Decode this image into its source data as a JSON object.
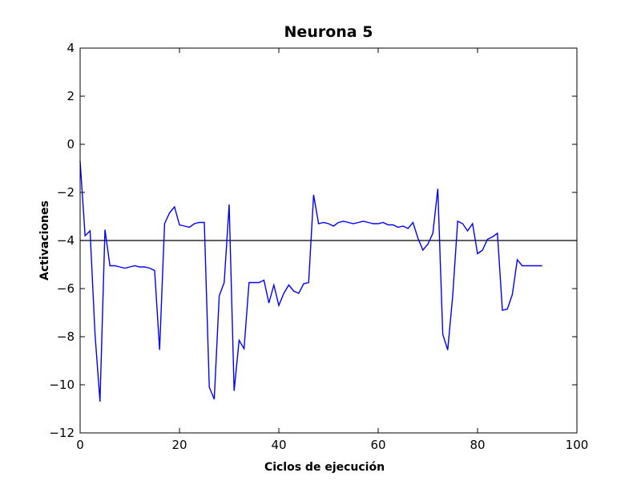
{
  "chart_data": {
    "type": "line",
    "title": "Neurona 5",
    "xlabel": "Ciclos de ejecución",
    "ylabel": "Activaciones",
    "xlim": [
      0,
      100
    ],
    "ylim": [
      -12,
      4
    ],
    "xticks": [
      0,
      20,
      40,
      60,
      80,
      100
    ],
    "yticks": [
      4,
      2,
      0,
      -2,
      -4,
      -6,
      -8,
      -10,
      -12
    ],
    "ytick_labels": [
      "4",
      "2",
      "0",
      "−2",
      "−4",
      "−6",
      "−8",
      "−10",
      "−12"
    ],
    "grid": false,
    "reference_line": {
      "y": -4,
      "color": "#000000"
    },
    "series": [
      {
        "color": "#0000ff",
        "x": [
          0,
          1,
          2,
          3,
          4,
          5,
          6,
          7,
          8,
          9,
          10,
          11,
          12,
          13,
          14,
          15,
          16,
          17,
          18,
          19,
          20,
          21,
          22,
          23,
          24,
          25,
          26,
          27,
          28,
          29,
          30,
          31,
          32,
          33,
          34,
          35,
          36,
          37,
          38,
          39,
          40,
          41,
          42,
          43,
          44,
          45,
          46,
          47,
          48,
          49,
          50,
          51,
          52,
          53,
          54,
          55,
          56,
          57,
          58,
          59,
          60,
          61,
          62,
          63,
          64,
          65,
          66,
          67,
          68,
          69,
          70,
          71,
          72,
          73,
          74,
          75,
          76,
          77,
          78,
          79,
          80,
          81,
          82,
          83,
          84,
          85,
          86,
          87,
          88,
          89,
          90,
          91,
          92,
          93
        ],
        "y": [
          -0.7,
          -3.8,
          -3.6,
          -7.9,
          -10.7,
          -3.55,
          -5.05,
          -5.05,
          -5.1,
          -5.15,
          -5.1,
          -5.05,
          -5.1,
          -5.1,
          -5.15,
          -5.25,
          -8.55,
          -3.3,
          -2.85,
          -2.6,
          -3.35,
          -3.4,
          -3.45,
          -3.3,
          -3.25,
          -3.25,
          -10.1,
          -10.6,
          -6.3,
          -5.75,
          -2.5,
          -10.25,
          -8.15,
          -8.5,
          -5.75,
          -5.75,
          -5.75,
          -5.65,
          -6.6,
          -5.85,
          -6.7,
          -6.2,
          -5.85,
          -6.1,
          -6.2,
          -5.8,
          -5.75,
          -2.1,
          -3.3,
          -3.25,
          -3.3,
          -3.4,
          -3.25,
          -3.2,
          -3.25,
          -3.3,
          -3.25,
          -3.2,
          -3.25,
          -3.3,
          -3.3,
          -3.25,
          -3.35,
          -3.35,
          -3.45,
          -3.4,
          -3.5,
          -3.25,
          -3.9,
          -4.4,
          -4.15,
          -3.7,
          -1.85,
          -7.9,
          -8.55,
          -6.3,
          -3.2,
          -3.3,
          -3.6,
          -3.3,
          -4.55,
          -4.4,
          -3.95,
          -3.85,
          -3.7,
          -6.9,
          -6.85,
          -6.25,
          -4.8,
          -5.05,
          -5.05,
          -5.05,
          -5.05,
          -5.05
        ]
      }
    ]
  }
}
